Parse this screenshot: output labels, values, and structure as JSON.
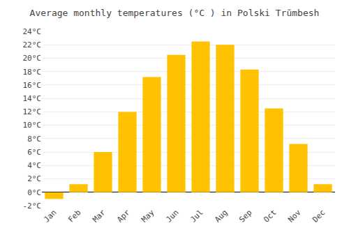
{
  "chart_data": {
    "type": "bar",
    "title": "Average monthly temperatures (°C ) in Polski Trŭmbesh",
    "categories": [
      "Jan",
      "Feb",
      "Mar",
      "Apr",
      "May",
      "Jun",
      "Jul",
      "Aug",
      "Sep",
      "Oct",
      "Nov",
      "Dec"
    ],
    "values": [
      -1.0,
      1.2,
      6.0,
      12.0,
      17.2,
      20.5,
      22.5,
      22.0,
      18.3,
      12.5,
      7.2,
      1.2
    ],
    "color": "#FFC200",
    "ylim": [
      -2,
      24
    ],
    "yticks": [
      {
        "value": -2,
        "label": "-2°C"
      },
      {
        "value": 0,
        "label": "0°C"
      },
      {
        "value": 2,
        "label": "2°C"
      },
      {
        "value": 4,
        "label": "4°C"
      },
      {
        "value": 6,
        "label": "6°C"
      },
      {
        "value": 8,
        "label": "8°C"
      },
      {
        "value": 10,
        "label": "10°C"
      },
      {
        "value": 12,
        "label": "12°C"
      },
      {
        "value": 14,
        "label": "14°C"
      },
      {
        "value": 16,
        "label": "16°C"
      },
      {
        "value": 18,
        "label": "18°C"
      },
      {
        "value": 20,
        "label": "20°C"
      },
      {
        "value": 22,
        "label": "22°C"
      },
      {
        "value": 24,
        "label": "24°C"
      }
    ],
    "grid": true
  }
}
